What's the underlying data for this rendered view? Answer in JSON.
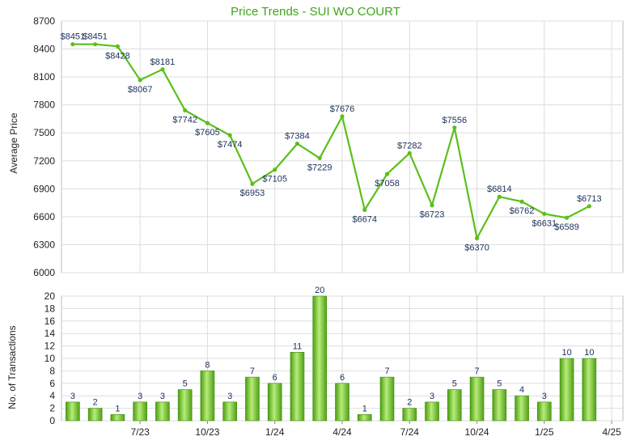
{
  "chart_data": [
    {
      "type": "line",
      "title": "Price Trends - SUI WO COURT",
      "ylabel": "Average Price",
      "ylim": [
        6000,
        8700
      ],
      "yticks": [
        6000,
        6300,
        6600,
        6900,
        7200,
        7500,
        7800,
        8100,
        8400,
        8700
      ],
      "grid": true,
      "x": [
        "2023-04",
        "2023-05",
        "2023-06",
        "2023-07",
        "2023-08",
        "2023-09",
        "2023-10",
        "2023-11",
        "2023-12",
        "2024-01",
        "2024-02",
        "2024-03",
        "2024-04",
        "2024-05",
        "2024-06",
        "2024-07",
        "2024-08",
        "2024-09",
        "2024-10",
        "2024-11",
        "2024-12",
        "2025-01",
        "2025-02",
        "2025-03",
        "2025-04"
      ],
      "values": [
        8451,
        8451,
        8428,
        8067,
        8181,
        7742,
        7605,
        7474,
        6953,
        7105,
        7384,
        7229,
        7676,
        6674,
        7058,
        7282,
        6723,
        7556,
        6370,
        6814,
        6762,
        6631,
        6589,
        6713,
        null
      ],
      "point_labels": [
        "$8451",
        "$8451",
        "$8428",
        "$8067",
        "$8181",
        "$7742",
        "$7605",
        "$7474",
        "$6953",
        "$7105",
        "$7384",
        "$7229",
        "$7676",
        "$6674",
        "$7058",
        "$7282",
        "$6723",
        "$7556",
        "$6370",
        "$6814",
        "$6762",
        "$6631",
        "$6589",
        "$6713",
        ""
      ],
      "color": "#5cbf1a"
    },
    {
      "type": "bar",
      "ylabel": "No. of Transactions",
      "ylim": [
        0,
        20
      ],
      "yticks": [
        0,
        2,
        4,
        6,
        8,
        10,
        12,
        14,
        16,
        18,
        20
      ],
      "grid": true,
      "x": [
        "2023-04",
        "2023-05",
        "2023-06",
        "2023-07",
        "2023-08",
        "2023-09",
        "2023-10",
        "2023-11",
        "2023-12",
        "2024-01",
        "2024-02",
        "2024-03",
        "2024-04",
        "2024-05",
        "2024-06",
        "2024-07",
        "2024-08",
        "2024-09",
        "2024-10",
        "2024-11",
        "2024-12",
        "2025-01",
        "2025-02",
        "2025-03",
        "2025-04"
      ],
      "values": [
        3,
        2,
        1,
        3,
        3,
        5,
        8,
        3,
        7,
        6,
        11,
        20,
        6,
        1,
        7,
        2,
        3,
        5,
        7,
        5,
        4,
        3,
        10,
        10,
        null
      ],
      "xticks": [
        "7/23",
        "10/23",
        "1/24",
        "4/24",
        "7/24",
        "10/24",
        "1/25",
        "4/25"
      ],
      "color": "#6cc02a"
    }
  ]
}
